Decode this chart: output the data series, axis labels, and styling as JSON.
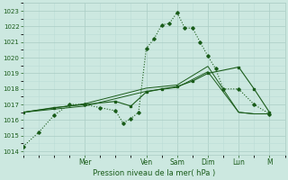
{
  "background_color": "#cce8e0",
  "plot_bg_color": "#cce8e0",
  "grid_color_major": "#aaccC4",
  "grid_color_minor": "#bbddd6",
  "line_color": "#1a5c1a",
  "xlabel_text": "Pression niveau de la mer( hPa )",
  "ylim": [
    1013.8,
    1023.5
  ],
  "yticks": [
    1014,
    1015,
    1016,
    1017,
    1018,
    1019,
    1020,
    1021,
    1022,
    1023
  ],
  "xlim": [
    0,
    8.5
  ],
  "day_labels": [
    "Mer",
    "Ven",
    "Sam",
    "Dim",
    "Lun",
    "M"
  ],
  "day_positions": [
    2.0,
    4.0,
    5.0,
    6.0,
    7.0,
    8.0
  ],
  "s1_x": [
    0,
    0.5,
    1.0,
    1.5,
    2.0,
    2.5,
    3.0,
    3.25,
    3.5,
    3.75,
    4.0,
    4.25,
    4.5,
    4.75,
    5.0,
    5.25,
    5.5,
    5.75,
    6.0,
    6.25,
    6.5,
    7.0,
    7.5,
    8.0
  ],
  "s1_y": [
    1014.3,
    1015.2,
    1016.3,
    1017.0,
    1017.0,
    1016.8,
    1016.6,
    1015.8,
    1016.1,
    1016.5,
    1020.6,
    1021.2,
    1022.1,
    1022.2,
    1022.9,
    1021.9,
    1021.9,
    1021.0,
    1020.1,
    1019.3,
    1018.0,
    1018.0,
    1017.0,
    1016.4
  ],
  "s2_x": [
    0,
    1.0,
    2.0,
    3.0,
    3.5,
    4.0,
    4.5,
    5.0,
    5.5,
    6.0,
    7.0,
    7.5,
    8.0
  ],
  "s2_y": [
    1016.5,
    1016.8,
    1017.0,
    1017.2,
    1016.9,
    1017.8,
    1018.0,
    1018.15,
    1018.5,
    1019.0,
    1019.4,
    1018.0,
    1016.5
  ],
  "s3_x": [
    0,
    2.0,
    4.0,
    5.0,
    6.0,
    7.0,
    7.5,
    8.0
  ],
  "s3_y": [
    1016.5,
    1016.9,
    1017.85,
    1018.1,
    1019.1,
    1016.5,
    1016.4,
    1016.4
  ],
  "s4_x": [
    0,
    2.0,
    4.0,
    5.0,
    6.0,
    7.0,
    7.5,
    8.0
  ],
  "s4_y": [
    1016.5,
    1017.05,
    1018.05,
    1018.25,
    1019.45,
    1016.5,
    1016.4,
    1016.4
  ]
}
